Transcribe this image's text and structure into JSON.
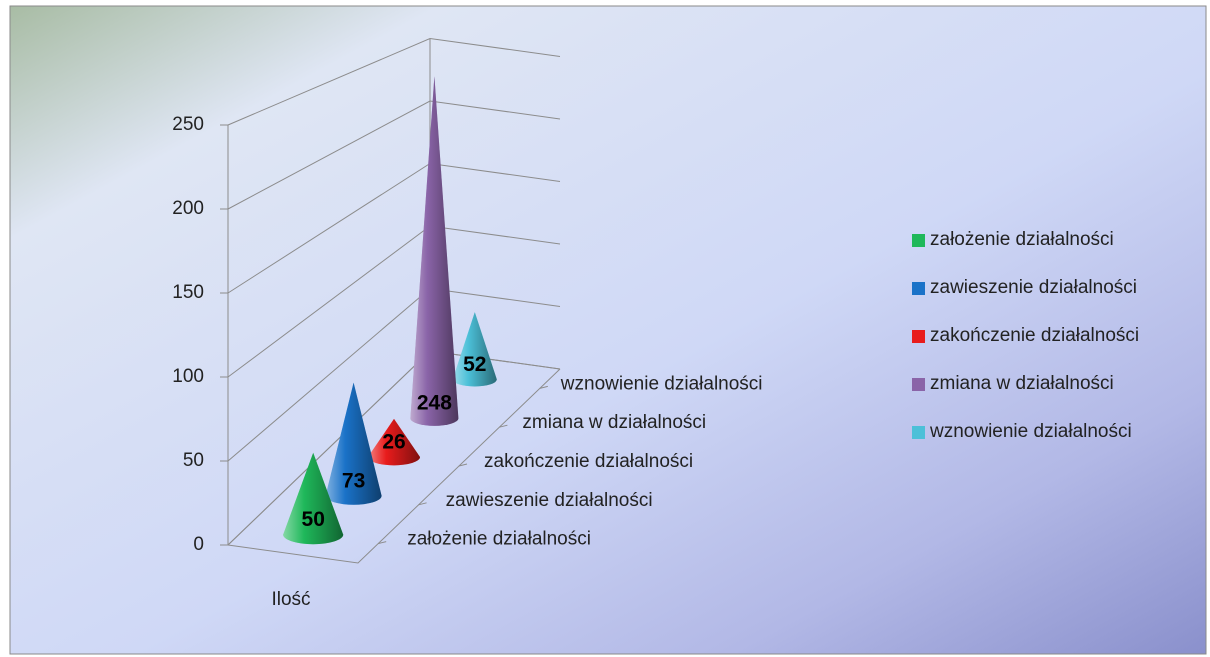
{
  "chart_data": {
    "type": "cone",
    "categories": [
      "Ilość"
    ],
    "series": [
      {
        "name": "założenie działalności",
        "color": "#1fb85a",
        "values": [
          50
        ]
      },
      {
        "name": "zawieszenie działalności",
        "color": "#1a72c8",
        "values": [
          73
        ]
      },
      {
        "name": "zakończenie działalności",
        "color": "#e81c1c",
        "values": [
          26
        ]
      },
      {
        "name": "zmiana w działalności",
        "color": "#8a64a8",
        "values": [
          248
        ]
      },
      {
        "name": "wznowienie działalności",
        "color": "#4cc0d8",
        "values": [
          52
        ]
      }
    ],
    "ylim": [
      0,
      250
    ],
    "yticks": [
      0,
      50,
      100,
      150,
      200,
      250
    ],
    "grid": true,
    "legend": "right"
  }
}
